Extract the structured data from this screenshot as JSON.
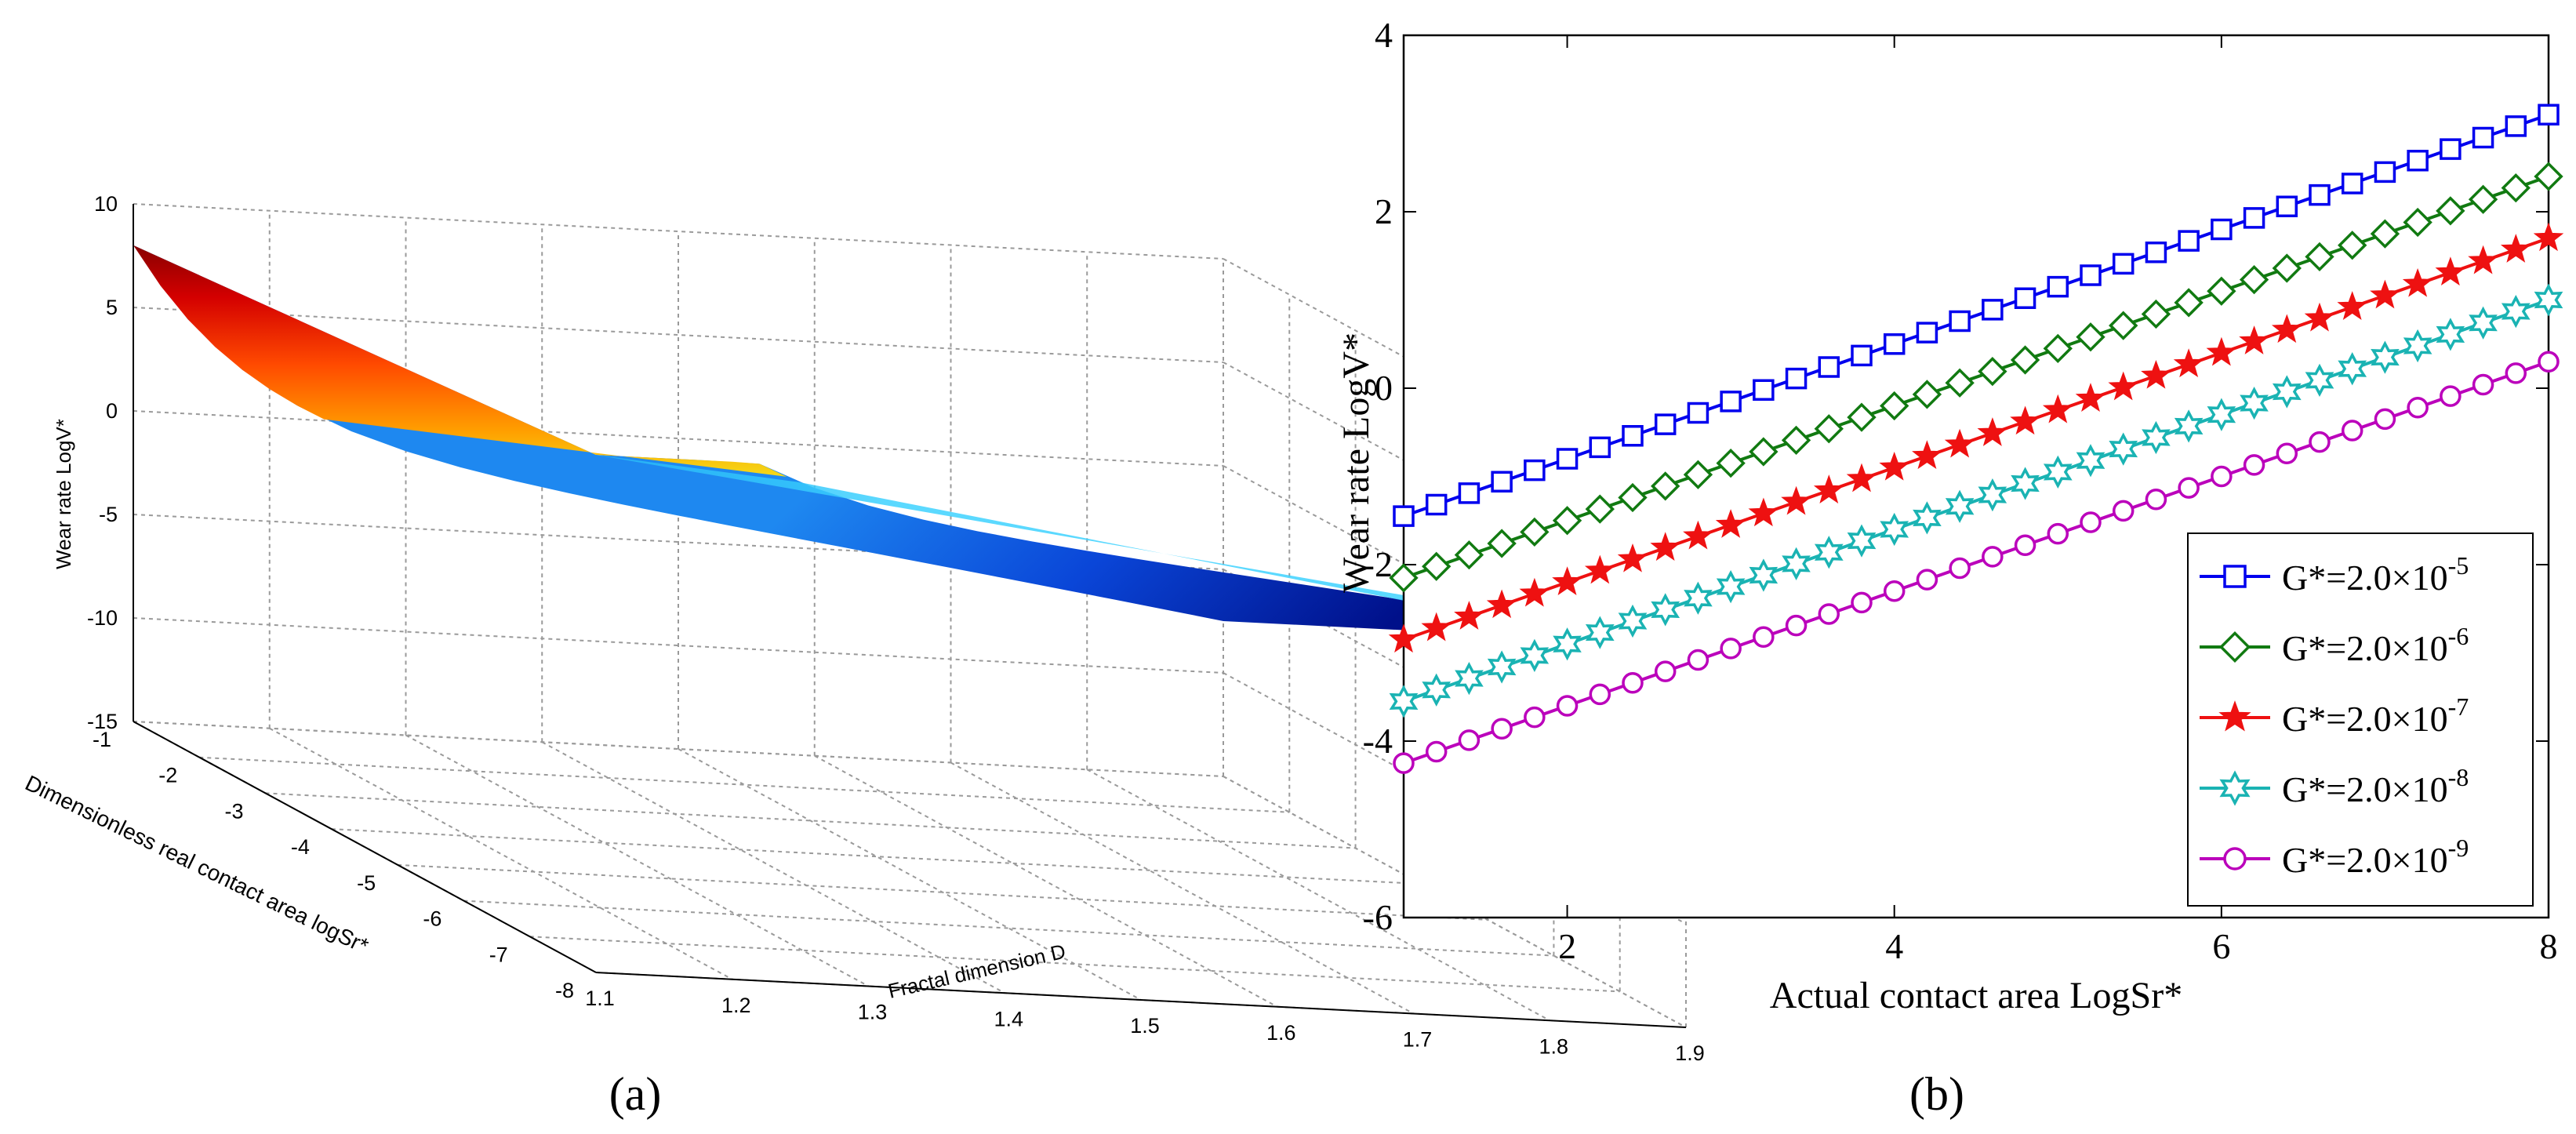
{
  "chart_data": [
    {
      "panel": "a",
      "type": "surface",
      "panel_label": "(a)",
      "xlabel": "Dimensionless real contact area logSr*",
      "ylabel": "Fractal dimension D",
      "zlabel": "Wear rate LogV*",
      "x_ticks": [
        "-1",
        "-2",
        "-3",
        "-4",
        "-5",
        "-6",
        "-7",
        "-8"
      ],
      "y_ticks": [
        "1.1",
        "1.2",
        "1.3",
        "1.4",
        "1.5",
        "1.6",
        "1.7",
        "1.8",
        "1.9"
      ],
      "z_ticks": [
        "10",
        "5",
        "0",
        "-5",
        "-10",
        "-15"
      ],
      "xlim": [
        -8,
        -1
      ],
      "ylim": [
        1.1,
        1.9
      ],
      "zlim": [
        -15,
        10
      ],
      "colormap": "jet",
      "grid": true,
      "surface_corners": {
        "x_-1_D_1.1": 8,
        "x_-1_D_1.9": -7.5,
        "x_-8_D_1.1": -1,
        "x_-8_D_1.9": -15
      }
    },
    {
      "panel": "b",
      "type": "line",
      "panel_label": "(b)",
      "xlabel": "Actual contact area LogSr*",
      "ylabel": "Wear rate LogV*",
      "xlim": [
        1,
        8
      ],
      "ylim": [
        -6,
        4
      ],
      "x_ticks": [
        "2",
        "4",
        "6",
        "8"
      ],
      "y_ticks": [
        "4",
        "2",
        "0",
        "-2",
        "-4",
        "-6"
      ],
      "points_per_series": 36,
      "legend_position": "lower-right",
      "series": [
        {
          "name": "G*=2.0×10-5",
          "legend_base": "G*=2.0×10",
          "legend_exp": "-5",
          "marker": "square",
          "color": "#0000ee",
          "start": [
            1,
            -1.45
          ],
          "end": [
            8,
            3.1
          ]
        },
        {
          "name": "G*=2.0×10-6",
          "legend_base": "G*=2.0×10",
          "legend_exp": "-6",
          "marker": "diamond",
          "color": "#117a11",
          "start": [
            1,
            -2.15
          ],
          "end": [
            8,
            2.4
          ]
        },
        {
          "name": "G*=2.0×10-7",
          "legend_base": "G*=2.0×10",
          "legend_exp": "-7",
          "marker": "star",
          "color": "#ee1111",
          "start": [
            1,
            -2.85
          ],
          "end": [
            8,
            1.7
          ]
        },
        {
          "name": "G*=2.0×10-8",
          "legend_base": "G*=2.0×10",
          "legend_exp": "-8",
          "marker": "hexagram",
          "color": "#1ab3b3",
          "start": [
            1,
            -3.55
          ],
          "end": [
            8,
            1.0
          ]
        },
        {
          "name": "G*=2.0×10-9",
          "legend_base": "G*=2.0×10",
          "legend_exp": "-9",
          "marker": "circle",
          "color": "#bb00bb",
          "start": [
            1,
            -4.25
          ],
          "end": [
            8,
            0.3
          ]
        }
      ]
    }
  ]
}
